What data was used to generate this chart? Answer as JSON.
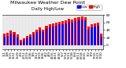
{
  "title": "Milwaukee Weather Dew Point",
  "subtitle": "Daily High/Low",
  "background_color": "#ffffff",
  "plot_bg_color": "#e8e8e8",
  "grid_color": "#ffffff",
  "high_color": "#ff0000",
  "low_color": "#0000ff",
  "ylim": [
    -10,
    80
  ],
  "yticks": [
    0,
    20,
    40,
    60,
    80
  ],
  "categories": [
    "1/1",
    "1/8",
    "1/15",
    "1/22",
    "1/29",
    "2/5",
    "2/12",
    "2/19",
    "2/26",
    "3/5",
    "3/12",
    "3/19",
    "3/26",
    "4/2",
    "4/9",
    "4/16",
    "4/23",
    "4/30",
    "5/7",
    "5/14",
    "5/21",
    "5/28",
    "6/4",
    "6/11",
    "6/18",
    "6/25",
    "7/2",
    "7/9",
    "7/16",
    "7/23",
    "7/30"
  ],
  "high_values": [
    30,
    32,
    38,
    35,
    28,
    15,
    18,
    25,
    28,
    35,
    42,
    48,
    42,
    52,
    55,
    58,
    60,
    62,
    63,
    66,
    70,
    68,
    72,
    74,
    76,
    74,
    50,
    55,
    58,
    60,
    30
  ],
  "low_values": [
    22,
    25,
    30,
    28,
    20,
    8,
    12,
    18,
    22,
    28,
    35,
    38,
    35,
    44,
    47,
    50,
    52,
    55,
    56,
    58,
    62,
    60,
    64,
    66,
    68,
    66,
    42,
    48,
    50,
    52,
    22
  ],
  "title_fontsize": 4.5,
  "subtitle_fontsize": 4.0,
  "tick_fontsize": 3.2,
  "legend_fontsize": 3.2
}
